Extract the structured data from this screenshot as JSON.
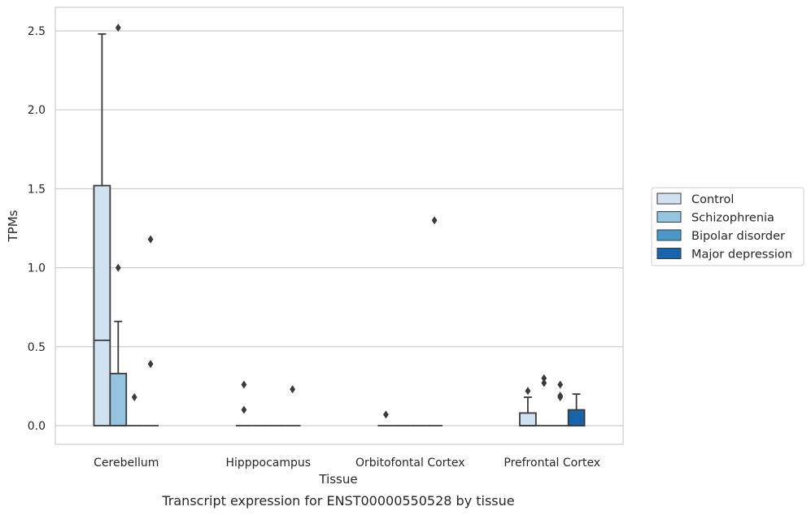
{
  "caption": "Transcript expression for ENST00000550528 by tissue",
  "chart_data": {
    "type": "boxplot",
    "xlabel": "Tissue",
    "ylabel": "TPMs",
    "ylim": [
      -0.12,
      2.65
    ],
    "yticks": [
      "0.0",
      "0.5",
      "1.0",
      "1.5",
      "2.0",
      "2.5"
    ],
    "grid": "horizontal",
    "legend_position": "right",
    "categories": [
      "Cerebellum",
      "Hipppocampus",
      "Orbitofontal Cortex",
      "Prefrontal Cortex"
    ],
    "series": [
      {
        "name": "Control",
        "color": "#d0e1f2",
        "boxes": [
          {
            "q1": 0.0,
            "median": 0.54,
            "q3": 1.52,
            "whisker_low": 0.0,
            "whisker_high": 2.48,
            "outliers": []
          },
          {
            "q1": 0.0,
            "median": 0.0,
            "q3": 0.0,
            "whisker_low": 0.0,
            "whisker_high": 0.0,
            "outliers": [
              0.1,
              0.26
            ]
          },
          {
            "q1": 0.0,
            "median": 0.0,
            "q3": 0.0,
            "whisker_low": 0.0,
            "whisker_high": 0.0,
            "outliers": [
              0.07
            ]
          },
          {
            "q1": 0.0,
            "median": 0.0,
            "q3": 0.08,
            "whisker_low": 0.0,
            "whisker_high": 0.18,
            "outliers": [
              0.22
            ]
          }
        ]
      },
      {
        "name": "Schizophrenia",
        "color": "#94c4df",
        "boxes": [
          {
            "q1": 0.0,
            "median": 0.0,
            "q3": 0.33,
            "whisker_low": 0.0,
            "whisker_high": 0.66,
            "outliers": [
              1.0,
              2.52
            ]
          },
          {
            "q1": 0.0,
            "median": 0.0,
            "q3": 0.0,
            "whisker_low": 0.0,
            "whisker_high": 0.0,
            "outliers": []
          },
          {
            "q1": 0.0,
            "median": 0.0,
            "q3": 0.0,
            "whisker_low": 0.0,
            "whisker_high": 0.0,
            "outliers": []
          },
          {
            "q1": 0.0,
            "median": 0.0,
            "q3": 0.0,
            "whisker_low": 0.0,
            "whisker_high": 0.0,
            "outliers": [
              0.27,
              0.3
            ]
          }
        ]
      },
      {
        "name": "Bipolar disorder",
        "color": "#4a98c9",
        "boxes": [
          {
            "q1": 0.0,
            "median": 0.0,
            "q3": 0.0,
            "whisker_low": 0.0,
            "whisker_high": 0.0,
            "outliers": [
              0.18
            ]
          },
          {
            "q1": 0.0,
            "median": 0.0,
            "q3": 0.0,
            "whisker_low": 0.0,
            "whisker_high": 0.0,
            "outliers": []
          },
          {
            "q1": 0.0,
            "median": 0.0,
            "q3": 0.0,
            "whisker_low": 0.0,
            "whisker_high": 0.0,
            "outliers": []
          },
          {
            "q1": 0.0,
            "median": 0.0,
            "q3": 0.0,
            "whisker_low": 0.0,
            "whisker_high": 0.0,
            "outliers": [
              0.18,
              0.19,
              0.26
            ]
          }
        ]
      },
      {
        "name": "Major depression",
        "color": "#1764ab",
        "boxes": [
          {
            "q1": 0.0,
            "median": 0.0,
            "q3": 0.0,
            "whisker_low": 0.0,
            "whisker_high": 0.0,
            "outliers": [
              0.39,
              1.18
            ]
          },
          {
            "q1": 0.0,
            "median": 0.0,
            "q3": 0.0,
            "whisker_low": 0.0,
            "whisker_high": 0.0,
            "outliers": [
              0.23
            ]
          },
          {
            "q1": 0.0,
            "median": 0.0,
            "q3": 0.0,
            "whisker_low": 0.0,
            "whisker_high": 0.0,
            "outliers": [
              1.3
            ]
          },
          {
            "q1": 0.0,
            "median": 0.0,
            "q3": 0.1,
            "whisker_low": 0.0,
            "whisker_high": 0.2,
            "outliers": []
          }
        ]
      }
    ]
  }
}
